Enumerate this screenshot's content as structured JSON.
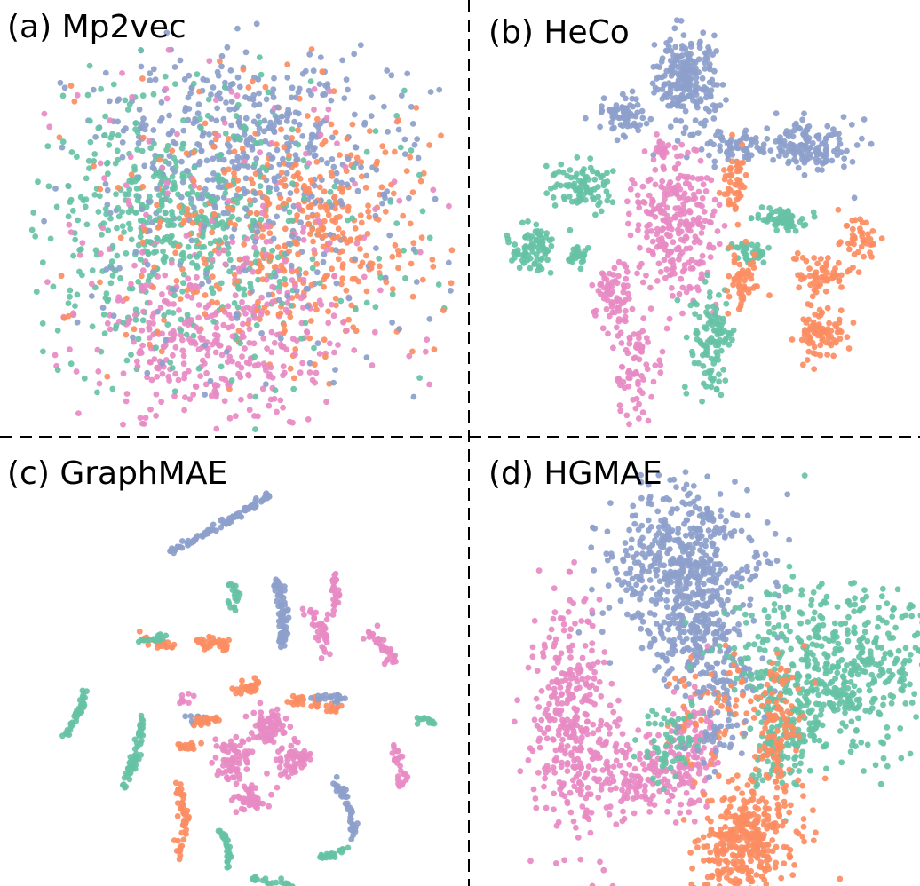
{
  "figure": {
    "colors": {
      "c1": "#8da0cb",
      "c2": "#fc8d62",
      "c3": "#e78ac3",
      "c4": "#66c2a5"
    }
  },
  "chart_data": [
    {
      "type": "scatter",
      "title": "(a) Mp2vec",
      "xlabel": "",
      "ylabel": "",
      "grid": false,
      "clusters": [
        {
          "color": "#8da0cb",
          "center": [
            0.5,
            0.29
          ],
          "spread": [
            0.18,
            0.12
          ],
          "count": 420
        },
        {
          "color": "#66c2a5",
          "center": [
            0.3,
            0.48
          ],
          "spread": [
            0.15,
            0.13
          ],
          "count": 360
        },
        {
          "color": "#fc8d62",
          "center": [
            0.66,
            0.52
          ],
          "spread": [
            0.17,
            0.14
          ],
          "count": 330
        },
        {
          "color": "#e78ac3",
          "center": [
            0.42,
            0.78
          ],
          "spread": [
            0.15,
            0.12
          ],
          "count": 330
        },
        {
          "color": "#66c2a5",
          "center": [
            0.5,
            0.55
          ],
          "spread": [
            0.3,
            0.22
          ],
          "count": 220
        },
        {
          "color": "#e78ac3",
          "center": [
            0.5,
            0.5
          ],
          "spread": [
            0.32,
            0.24
          ],
          "count": 150
        },
        {
          "color": "#8da0cb",
          "center": [
            0.55,
            0.55
          ],
          "spread": [
            0.28,
            0.22
          ],
          "count": 150
        },
        {
          "color": "#fc8d62",
          "center": [
            0.5,
            0.5
          ],
          "spread": [
            0.3,
            0.24
          ],
          "count": 120
        }
      ]
    },
    {
      "type": "scatter",
      "title": "(b) HeCo",
      "xlabel": "",
      "ylabel": "",
      "grid": false,
      "clusters": [
        {
          "color": "#8da0cb",
          "center": [
            0.48,
            0.13
          ],
          "spread": [
            0.035,
            0.06
          ],
          "count": 240
        },
        {
          "color": "#8da0cb",
          "center": [
            0.32,
            0.22
          ],
          "spread": [
            0.03,
            0.025
          ],
          "count": 70
        },
        {
          "color": "#8da0cb",
          "center": [
            0.78,
            0.3
          ],
          "spread": [
            0.06,
            0.03
          ],
          "count": 140
        },
        {
          "color": "#8da0cb",
          "center": [
            0.6,
            0.3
          ],
          "spread": [
            0.05,
            0.02
          ],
          "count": 60
        },
        {
          "color": "#e78ac3",
          "center": [
            0.45,
            0.5
          ],
          "spread": [
            0.05,
            0.09
          ],
          "count": 260
        },
        {
          "color": "#e78ac3",
          "center": [
            0.3,
            0.68
          ],
          "spread": [
            0.02,
            0.05
          ],
          "count": 70
        },
        {
          "color": "#e78ac3",
          "center": [
            0.36,
            0.86
          ],
          "spread": [
            0.03,
            0.06
          ],
          "count": 70
        },
        {
          "color": "#e78ac3",
          "center": [
            0.42,
            0.31
          ],
          "spread": [
            0.015,
            0.012
          ],
          "count": 20
        },
        {
          "color": "#66c2a5",
          "center": [
            0.22,
            0.4
          ],
          "spread": [
            0.04,
            0.03
          ],
          "count": 90
        },
        {
          "color": "#66c2a5",
          "center": [
            0.1,
            0.55
          ],
          "spread": [
            0.03,
            0.03
          ],
          "count": 80
        },
        {
          "color": "#66c2a5",
          "center": [
            0.21,
            0.57
          ],
          "spread": [
            0.012,
            0.015
          ],
          "count": 25
        },
        {
          "color": "#66c2a5",
          "center": [
            0.71,
            0.48
          ],
          "spread": [
            0.03,
            0.015
          ],
          "count": 60
        },
        {
          "color": "#66c2a5",
          "center": [
            0.63,
            0.56
          ],
          "spread": [
            0.02,
            0.015
          ],
          "count": 35
        },
        {
          "color": "#66c2a5",
          "center": [
            0.54,
            0.79
          ],
          "spread": [
            0.025,
            0.07
          ],
          "count": 110
        },
        {
          "color": "#fc8d62",
          "center": [
            0.6,
            0.39
          ],
          "spread": [
            0.015,
            0.05
          ],
          "count": 50
        },
        {
          "color": "#fc8d62",
          "center": [
            0.62,
            0.64
          ],
          "spread": [
            0.02,
            0.04
          ],
          "count": 50
        },
        {
          "color": "#fc8d62",
          "center": [
            0.82,
            0.62
          ],
          "spread": [
            0.04,
            0.025
          ],
          "count": 60
        },
        {
          "color": "#fc8d62",
          "center": [
            0.81,
            0.77
          ],
          "spread": [
            0.03,
            0.035
          ],
          "count": 80
        },
        {
          "color": "#fc8d62",
          "center": [
            0.9,
            0.53
          ],
          "spread": [
            0.03,
            0.03
          ],
          "count": 40
        }
      ]
    },
    {
      "type": "scatter",
      "title": "(c) GraphMAE",
      "xlabel": "",
      "ylabel": "",
      "grid": false,
      "strokes": [
        {
          "color": "#8da0cb",
          "path": [
            [
              0.32,
              0.18
            ],
            [
              0.56,
              0.04
            ]
          ],
          "count": 90,
          "width": 0.004
        },
        {
          "color": "#8da0cb",
          "path": [
            [
              0.58,
              0.25
            ],
            [
              0.59,
              0.42
            ]
          ],
          "count": 70,
          "width": 0.006
        },
        {
          "color": "#8da0cb",
          "path": [
            [
              0.72,
              0.75
            ],
            [
              0.77,
              0.89
            ]
          ],
          "count": 50,
          "width": 0.005
        },
        {
          "color": "#66c2a5",
          "path": [
            [
              0.06,
              0.64
            ],
            [
              0.11,
              0.53
            ]
          ],
          "count": 40,
          "width": 0.004
        },
        {
          "color": "#66c2a5",
          "path": [
            [
              0.2,
              0.77
            ],
            [
              0.25,
              0.6
            ]
          ],
          "count": 55,
          "width": 0.005
        },
        {
          "color": "#66c2a5",
          "path": [
            [
              0.44,
              0.87
            ],
            [
              0.46,
              0.97
            ]
          ],
          "count": 30,
          "width": 0.004
        },
        {
          "color": "#66c2a5",
          "path": [
            [
              0.68,
              0.95
            ],
            [
              0.75,
              0.92
            ]
          ],
          "count": 25,
          "width": 0.004
        },
        {
          "color": "#66c2a5",
          "path": [
            [
              0.52,
              1.0
            ],
            [
              0.62,
              1.02
            ]
          ],
          "count": 20,
          "width": 0.004
        },
        {
          "color": "#fc8d62",
          "path": [
            [
              0.34,
              0.95
            ],
            [
              0.34,
              0.75
            ]
          ],
          "count": 50,
          "width": 0.006
        },
        {
          "color": "#fc8d62",
          "path": [
            [
              0.62,
              0.55
            ],
            [
              0.74,
              0.58
            ]
          ],
          "count": 40,
          "width": 0.007
        },
        {
          "color": "#fc8d62",
          "path": [
            [
              0.38,
              0.4
            ],
            [
              0.46,
              0.42
            ]
          ],
          "count": 35,
          "width": 0.008
        },
        {
          "color": "#fc8d62",
          "path": [
            [
              0.26,
              0.4
            ],
            [
              0.32,
              0.42
            ]
          ],
          "count": 25,
          "width": 0.007
        },
        {
          "color": "#fc8d62",
          "path": [
            [
              0.47,
              0.53
            ],
            [
              0.53,
              0.51
            ]
          ],
          "count": 25,
          "width": 0.008
        },
        {
          "color": "#fc8d62",
          "path": [
            [
              0.34,
              0.67
            ],
            [
              0.38,
              0.67
            ]
          ],
          "count": 15,
          "width": 0.007
        },
        {
          "color": "#fc8d62",
          "path": [
            [
              0.37,
              0.61
            ],
            [
              0.43,
              0.6
            ]
          ],
          "count": 20,
          "width": 0.006
        },
        {
          "color": "#e78ac3",
          "path": [
            [
              0.72,
              0.24
            ],
            [
              0.71,
              0.35
            ]
          ],
          "count": 30,
          "width": 0.006
        },
        {
          "color": "#e78ac3",
          "path": [
            [
              0.66,
              0.33
            ],
            [
              0.7,
              0.45
            ]
          ],
          "count": 35,
          "width": 0.008
        },
        {
          "color": "#e78ac3",
          "path": [
            [
              0.8,
              0.38
            ],
            [
              0.86,
              0.46
            ]
          ],
          "count": 35,
          "width": 0.009
        },
        {
          "color": "#e78ac3",
          "path": [
            [
              0.86,
              0.67
            ],
            [
              0.87,
              0.71
            ]
          ],
          "count": 12,
          "width": 0.006
        },
        {
          "color": "#8da0cb",
          "path": [
            [
              0.66,
              0.54
            ],
            [
              0.74,
              0.55
            ]
          ],
          "count": 20,
          "width": 0.006
        },
        {
          "color": "#66c2a5",
          "path": [
            [
              0.46,
              0.25
            ],
            [
              0.47,
              0.32
            ]
          ],
          "count": 20,
          "width": 0.006
        },
        {
          "color": "#66c2a5",
          "path": [
            [
              0.25,
              0.4
            ],
            [
              0.3,
              0.39
            ]
          ],
          "count": 15,
          "width": 0.006
        },
        {
          "color": "#66c2a5",
          "path": [
            [
              0.92,
              0.6
            ],
            [
              0.96,
              0.61
            ]
          ],
          "count": 12,
          "width": 0.005
        }
      ],
      "clusters": [
        {
          "color": "#e78ac3",
          "center": [
            0.56,
            0.62
          ],
          "spread": [
            0.02,
            0.02
          ],
          "count": 70
        },
        {
          "color": "#e78ac3",
          "center": [
            0.47,
            0.7
          ],
          "spread": [
            0.02,
            0.03
          ],
          "count": 70
        },
        {
          "color": "#e78ac3",
          "center": [
            0.62,
            0.7
          ],
          "spread": [
            0.02,
            0.02
          ],
          "count": 55
        },
        {
          "color": "#e78ac3",
          "center": [
            0.51,
            0.8
          ],
          "spread": [
            0.02,
            0.025
          ],
          "count": 45
        },
        {
          "color": "#e78ac3",
          "center": [
            0.35,
            0.55
          ],
          "spread": [
            0.008,
            0.008
          ],
          "count": 8
        },
        {
          "color": "#e78ac3",
          "center": [
            0.88,
            0.75
          ],
          "spread": [
            0.01,
            0.015
          ],
          "count": 12
        },
        {
          "color": "#8da0cb",
          "center": [
            0.38,
            0.6
          ],
          "spread": [
            0.012,
            0.008
          ],
          "count": 10
        }
      ]
    },
    {
      "type": "scatter",
      "title": "(d) HGMAE",
      "xlabel": "",
      "ylabel": "",
      "grid": false,
      "clusters": [
        {
          "color": "#8da0cb",
          "center": [
            0.44,
            0.2
          ],
          "spread": [
            0.09,
            0.09
          ],
          "count": 500
        },
        {
          "color": "#8da0cb",
          "center": [
            0.46,
            0.4
          ],
          "spread": [
            0.05,
            0.06
          ],
          "count": 160
        },
        {
          "color": "#8da0cb",
          "center": [
            0.55,
            0.5
          ],
          "spread": [
            0.04,
            0.03
          ],
          "count": 50
        },
        {
          "color": "#66c2a5",
          "center": [
            0.8,
            0.47
          ],
          "spread": [
            0.12,
            0.1
          ],
          "count": 540
        },
        {
          "color": "#66c2a5",
          "center": [
            0.68,
            0.64
          ],
          "spread": [
            0.04,
            0.08
          ],
          "count": 120
        },
        {
          "color": "#e78ac3",
          "center": [
            0.16,
            0.6
          ],
          "spread": [
            0.05,
            0.14
          ],
          "count": 330
        },
        {
          "color": "#e78ac3",
          "center": [
            0.32,
            0.73
          ],
          "spread": [
            0.06,
            0.05
          ],
          "count": 150
        },
        {
          "color": "#e78ac3",
          "center": [
            0.46,
            0.66
          ],
          "spread": [
            0.03,
            0.08
          ],
          "count": 110
        },
        {
          "color": "#fc8d62",
          "center": [
            0.59,
            0.9
          ],
          "spread": [
            0.06,
            0.07
          ],
          "count": 350
        },
        {
          "color": "#fc8d62",
          "center": [
            0.67,
            0.64
          ],
          "spread": [
            0.03,
            0.1
          ],
          "count": 110
        },
        {
          "color": "#fc8d62",
          "center": [
            0.5,
            0.57
          ],
          "spread": [
            0.05,
            0.06
          ],
          "count": 60
        },
        {
          "color": "#66c2a5",
          "center": [
            0.4,
            0.64
          ],
          "spread": [
            0.04,
            0.05
          ],
          "count": 60
        },
        {
          "color": "#8da0cb",
          "center": [
            0.52,
            0.62
          ],
          "spread": [
            0.05,
            0.05
          ],
          "count": 40
        }
      ]
    }
  ]
}
